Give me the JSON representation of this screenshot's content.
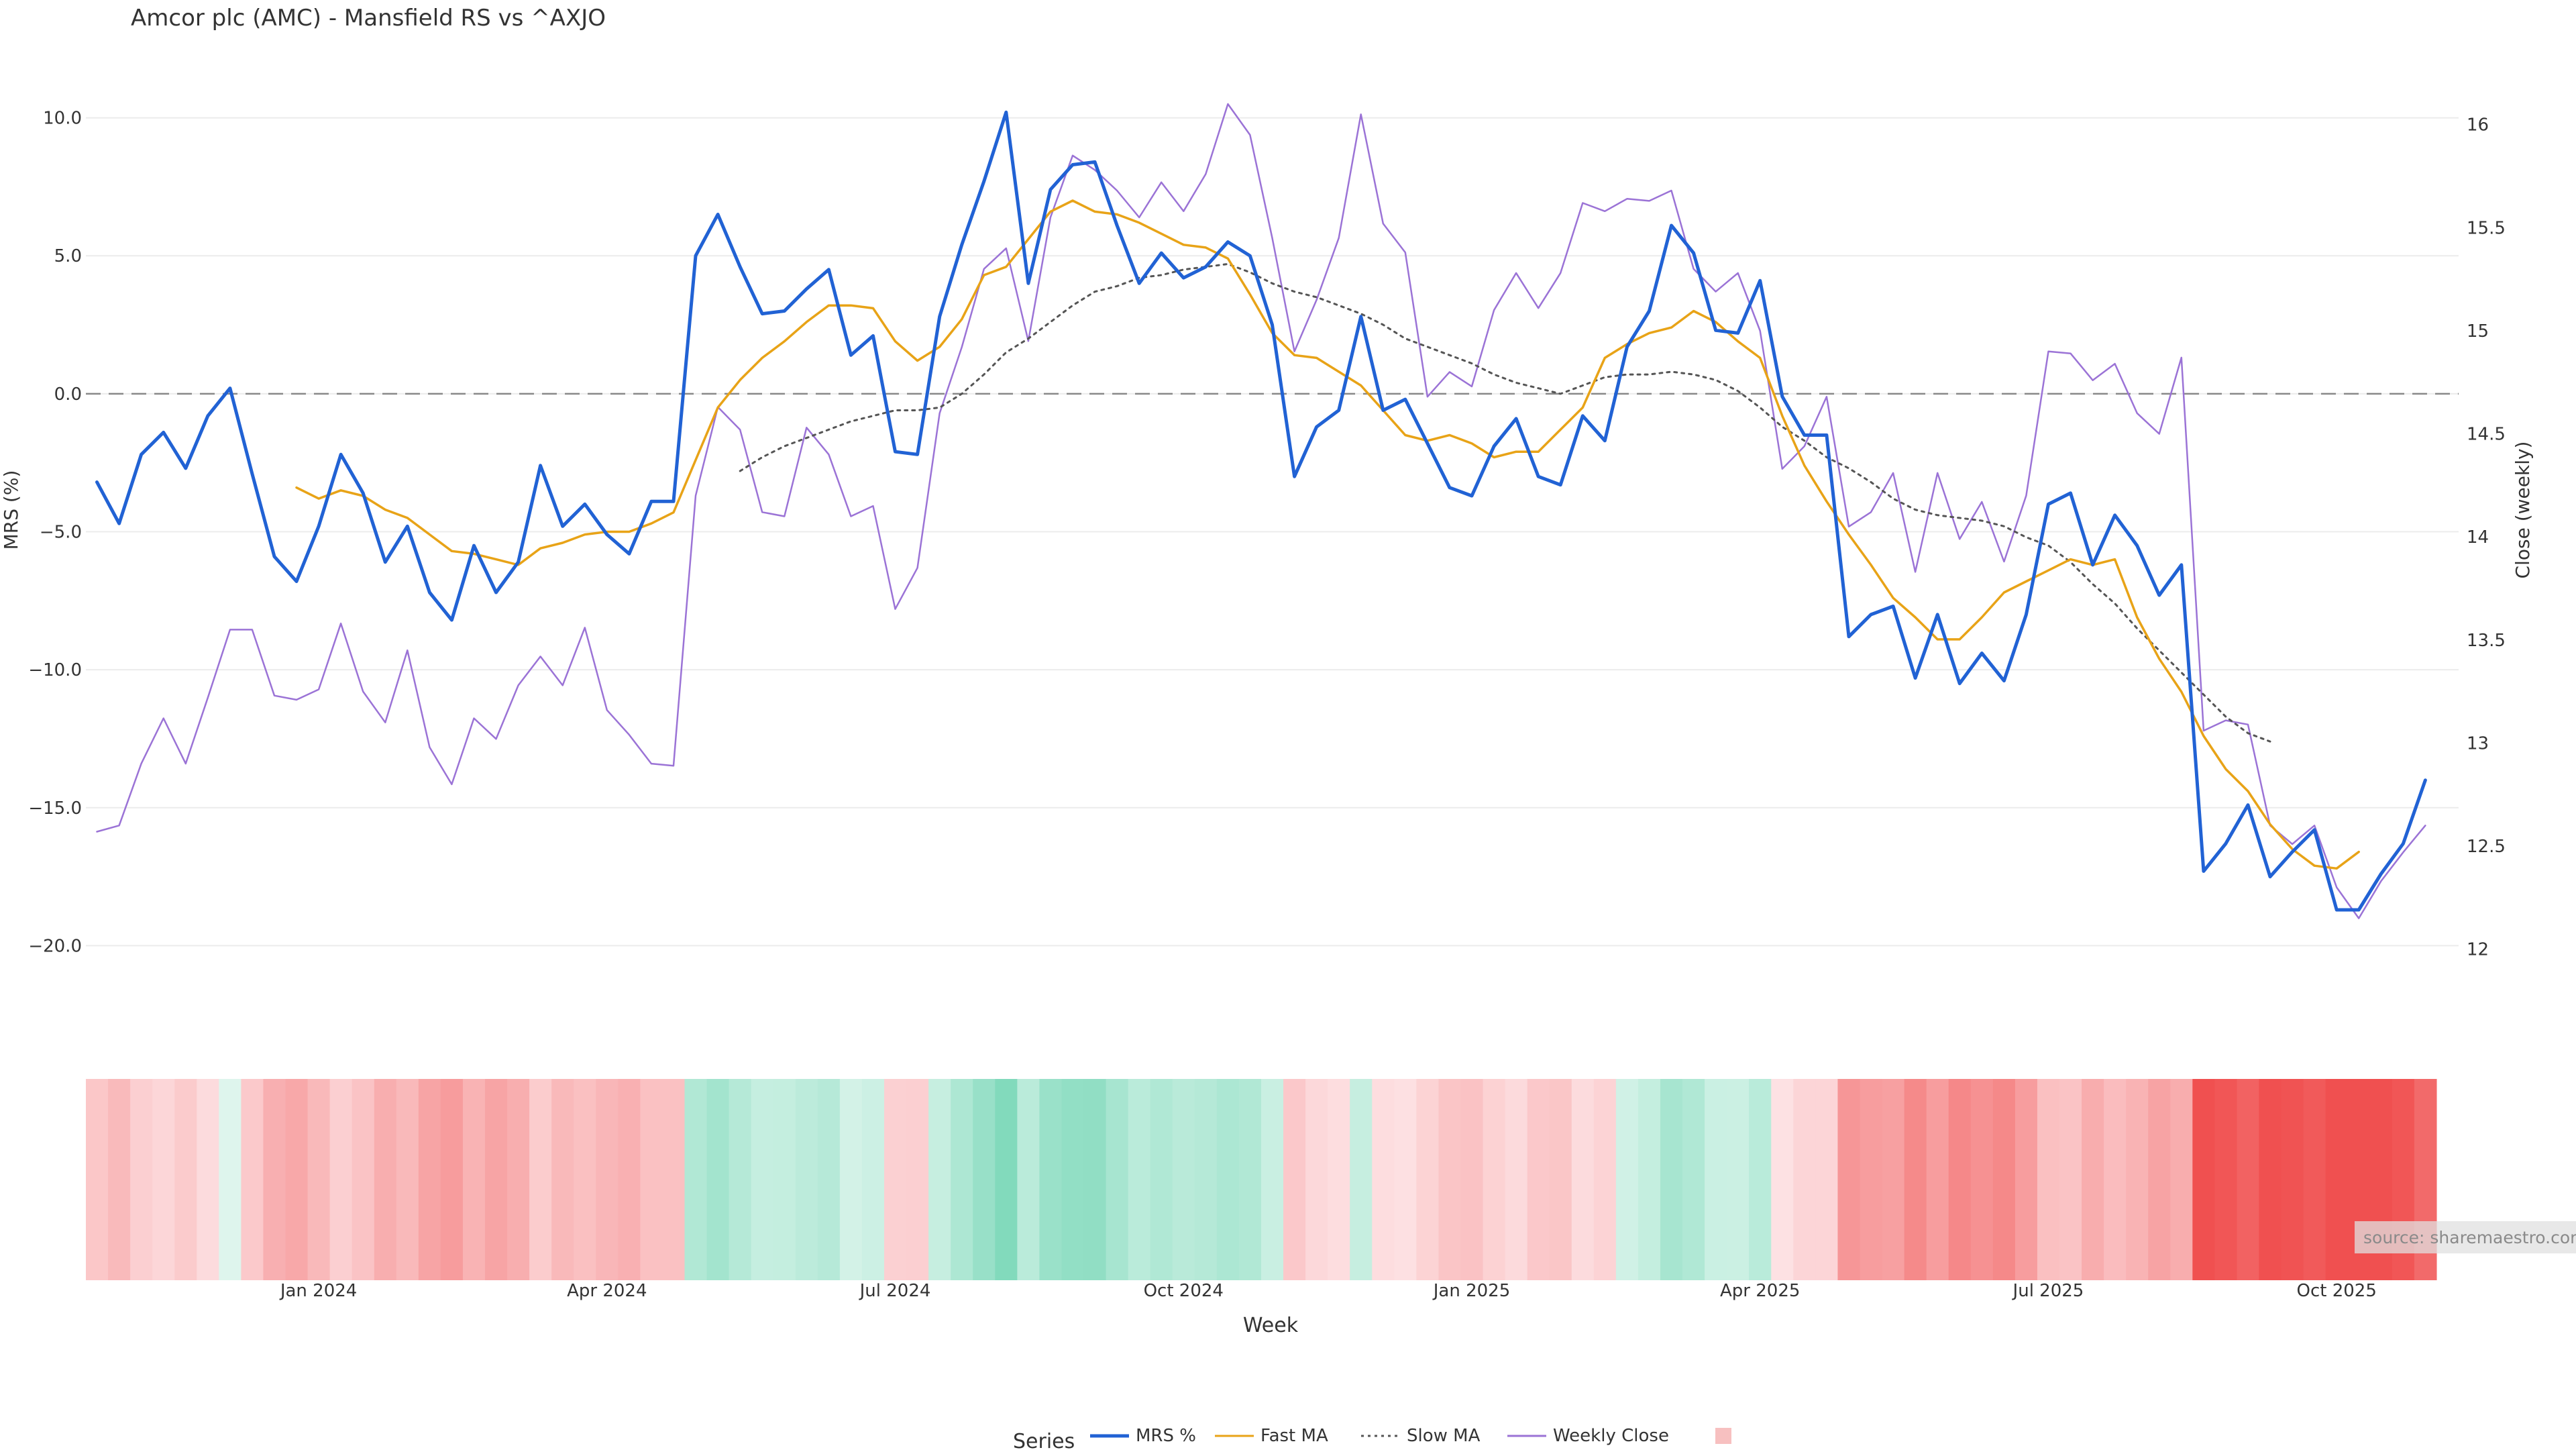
{
  "chart_data": {
    "type": "line",
    "title": "Amcor plc (AMC) - Mansfield RS vs ^AXJO",
    "xlabel": "Week",
    "ylabel_left": "MRS (%)",
    "ylabel_right": "Close (weekly)",
    "ylim_left": [
      -20.5,
      10.5
    ],
    "ylim_right": [
      11.95,
      16.1
    ],
    "yticks_left": [
      10,
      5,
      0,
      -5,
      -10,
      -15,
      -20
    ],
    "yticks_left_labels": [
      "10.0",
      "5.0",
      "0.0",
      "−5.0",
      "−10.0",
      "−15.0",
      "−20.0"
    ],
    "yticks_right": [
      16,
      15.5,
      15,
      14.5,
      14,
      13.5,
      13,
      12.5,
      12
    ],
    "yticks_right_labels": [
      "16",
      "15.5",
      "15",
      "14.5",
      "14",
      "13.5",
      "13",
      "12.5",
      "12"
    ],
    "xticks": [
      {
        "label": "Jan 2024",
        "week": 10
      },
      {
        "label": "Apr 2024",
        "week": 23
      },
      {
        "label": "Jul 2024",
        "week": 36
      },
      {
        "label": "Oct 2024",
        "week": 49
      },
      {
        "label": "Jan 2025",
        "week": 62
      },
      {
        "label": "Apr 2025",
        "week": 75
      },
      {
        "label": "Jul 2025",
        "week": 88
      },
      {
        "label": "Oct 2025",
        "week": 101
      }
    ],
    "x_range": [
      -0.5,
      106.5
    ],
    "zero_line": 0,
    "grid": true,
    "legend_title": "Series",
    "legend_position": "bottom-center",
    "source_note": "source: sharemaestro.com",
    "series": [
      {
        "name": "MRS %",
        "axis": "left",
        "color": "#2162d4",
        "style": "solid",
        "start_week": 0,
        "values": [
          -3.2,
          -4.7,
          -2.2,
          -1.4,
          -2.7,
          -0.8,
          0.2,
          -2.9,
          -5.9,
          -6.8,
          -4.8,
          -2.2,
          -3.6,
          -6.1,
          -4.8,
          -7.2,
          -8.2,
          -5.5,
          -7.2,
          -6.1,
          -2.6,
          -4.8,
          -4.0,
          -5.1,
          -5.8,
          -3.9,
          -3.9,
          5.0,
          6.5,
          4.6,
          2.9,
          3.0,
          3.8,
          4.5,
          1.4,
          2.1,
          -2.1,
          -2.2,
          2.8,
          5.4,
          7.7,
          10.2,
          4.0,
          7.4,
          8.3,
          8.4,
          6.1,
          4.0,
          5.1,
          4.2,
          4.6,
          5.5,
          5.0,
          2.5,
          -3.0,
          -1.2,
          -0.6,
          2.8,
          -0.6,
          -0.2,
          -1.8,
          -3.4,
          -3.7,
          -1.9,
          -0.9,
          -3.0,
          -3.3,
          -0.8,
          -1.7,
          1.7,
          3.0,
          6.1,
          5.1,
          2.3,
          2.2,
          4.1,
          -0.1,
          -1.5,
          -1.5,
          -8.8,
          -8.0,
          -7.7,
          -10.3,
          -8.0,
          -10.5,
          -9.4,
          -10.4,
          -8.0,
          -4.0,
          -3.6,
          -6.2,
          -4.4,
          -5.5,
          -7.3,
          -6.2,
          -17.3,
          -16.3,
          -14.9,
          -17.5,
          -16.6,
          -15.8,
          -18.7,
          -18.7,
          -17.4,
          -16.3,
          -14.0
        ]
      },
      {
        "name": "Fast MA",
        "axis": "left",
        "color": "#e8a317",
        "style": "solid",
        "start_week": 9,
        "values": [
          -3.4,
          -3.8,
          -3.5,
          -3.7,
          -4.2,
          -4.5,
          -5.1,
          -5.7,
          -5.8,
          -6.0,
          -6.2,
          -5.6,
          -5.4,
          -5.1,
          -5.0,
          -5.0,
          -4.7,
          -4.3,
          -2.4,
          -0.5,
          0.5,
          1.3,
          1.9,
          2.6,
          3.2,
          3.2,
          3.1,
          1.9,
          1.2,
          1.7,
          2.7,
          4.3,
          4.6,
          5.6,
          6.6,
          7.0,
          6.6,
          6.5,
          6.2,
          5.8,
          5.4,
          5.3,
          4.9,
          3.6,
          2.2,
          1.4,
          1.3,
          0.8,
          0.3,
          -0.6,
          -1.5,
          -1.7,
          -1.5,
          -1.8,
          -2.3,
          -2.1,
          -2.1,
          -1.3,
          -0.5,
          1.3,
          1.8,
          2.2,
          2.4,
          3.0,
          2.6,
          1.9,
          1.3,
          -0.8,
          -2.6,
          -3.9,
          -5.1,
          -6.2,
          -7.4,
          -8.1,
          -8.9,
          -8.9,
          -8.1,
          -7.2,
          -6.8,
          -6.4,
          -6.0,
          -6.2,
          -6.0,
          -8.1,
          -9.6,
          -10.8,
          -12.4,
          -13.6,
          -14.4,
          -15.6,
          -16.5,
          -17.1,
          -17.2,
          -16.6
        ]
      },
      {
        "name": "Slow MA",
        "axis": "left",
        "color": "#555555",
        "style": "dotted",
        "start_week": 29,
        "values": [
          -2.8,
          -2.3,
          -1.9,
          -1.6,
          -1.3,
          -1.0,
          -0.8,
          -0.6,
          -0.6,
          -0.5,
          0.0,
          0.7,
          1.5,
          2.0,
          2.6,
          3.2,
          3.7,
          3.9,
          4.2,
          4.3,
          4.5,
          4.6,
          4.7,
          4.4,
          4.0,
          3.7,
          3.5,
          3.2,
          2.9,
          2.5,
          2.0,
          1.7,
          1.4,
          1.1,
          0.7,
          0.4,
          0.2,
          0.0,
          0.3,
          0.6,
          0.7,
          0.7,
          0.8,
          0.7,
          0.5,
          0.1,
          -0.5,
          -1.2,
          -1.7,
          -2.3,
          -2.7,
          -3.2,
          -3.8,
          -4.2,
          -4.4,
          -4.5,
          -4.6,
          -4.8,
          -5.2,
          -5.5,
          -6.1,
          -6.9,
          -7.6,
          -8.5,
          -9.3,
          -10.1,
          -10.9,
          -11.7,
          -12.3,
          -12.6
        ]
      },
      {
        "name": "Weekly Close",
        "axis": "right",
        "color": "#9b73d6",
        "style": "solid",
        "start_week": 0,
        "values": [
          12.57,
          12.6,
          12.9,
          13.12,
          12.9,
          13.22,
          13.55,
          13.55,
          13.23,
          13.21,
          13.26,
          13.58,
          13.25,
          13.1,
          13.45,
          12.98,
          12.8,
          13.12,
          13.02,
          13.28,
          13.42,
          13.28,
          13.56,
          13.16,
          13.04,
          12.9,
          12.89,
          14.2,
          14.63,
          14.52,
          14.12,
          14.1,
          14.53,
          14.4,
          14.1,
          14.15,
          13.65,
          13.85,
          14.6,
          14.92,
          15.3,
          15.4,
          14.95,
          15.55,
          15.85,
          15.78,
          15.68,
          15.55,
          15.72,
          15.58,
          15.76,
          16.1,
          15.95,
          15.45,
          14.9,
          15.15,
          15.45,
          16.05,
          15.52,
          15.38,
          14.68,
          14.8,
          14.73,
          15.1,
          15.28,
          15.11,
          15.28,
          15.62,
          15.58,
          15.64,
          15.63,
          15.68,
          15.3,
          15.19,
          15.28,
          15.0,
          14.33,
          14.44,
          14.68,
          14.05,
          14.12,
          14.31,
          13.83,
          14.31,
          13.99,
          14.17,
          13.88,
          14.2,
          14.9,
          14.89,
          14.76,
          14.84,
          14.6,
          14.5,
          14.87,
          13.06,
          13.11,
          13.09,
          12.6,
          12.51,
          12.6,
          12.3,
          12.15,
          12.33,
          12.47,
          12.6
        ]
      },
      {
        "name": "",
        "axis": "none",
        "type": "heatmap-band",
        "legend_swatch_color": "#f7c0c0",
        "start_week": 0,
        "values": [
          -3.2,
          -4.7,
          -2.2,
          -1.4,
          -2.7,
          -0.8,
          0.2,
          -2.9,
          -5.9,
          -6.8,
          -4.8,
          -2.2,
          -3.6,
          -6.1,
          -4.8,
          -7.2,
          -8.2,
          -5.5,
          -7.2,
          -6.1,
          -2.6,
          -4.8,
          -4.0,
          -5.1,
          -5.8,
          -3.9,
          -3.9,
          5.0,
          6.5,
          4.6,
          2.9,
          3.0,
          3.8,
          4.5,
          1.4,
          2.1,
          -2.1,
          -2.2,
          2.8,
          5.4,
          7.7,
          10.2,
          4.0,
          7.4,
          8.3,
          8.4,
          6.1,
          4.0,
          5.1,
          4.2,
          4.6,
          5.5,
          5.0,
          2.5,
          -3.0,
          -1.2,
          -0.6,
          2.8,
          -0.6,
          -0.2,
          -1.8,
          -3.4,
          -3.7,
          -1.9,
          -0.9,
          -3.0,
          -3.3,
          -0.8,
          -1.7,
          1.7,
          3.0,
          6.1,
          5.1,
          2.3,
          2.2,
          4.1,
          -0.1,
          -1.5,
          -1.5,
          -8.8,
          -8.0,
          -7.7,
          -10.3,
          -8.0,
          -10.5,
          -9.4,
          -10.4,
          -8.0,
          -4.0,
          -3.6,
          -6.2,
          -4.4,
          -5.5,
          -7.3,
          -6.2,
          -17.3,
          -16.3,
          -14.9,
          -17.5,
          -16.6,
          -15.8,
          -18.7,
          -18.7,
          -17.4,
          -16.3,
          -14.0
        ]
      }
    ]
  }
}
